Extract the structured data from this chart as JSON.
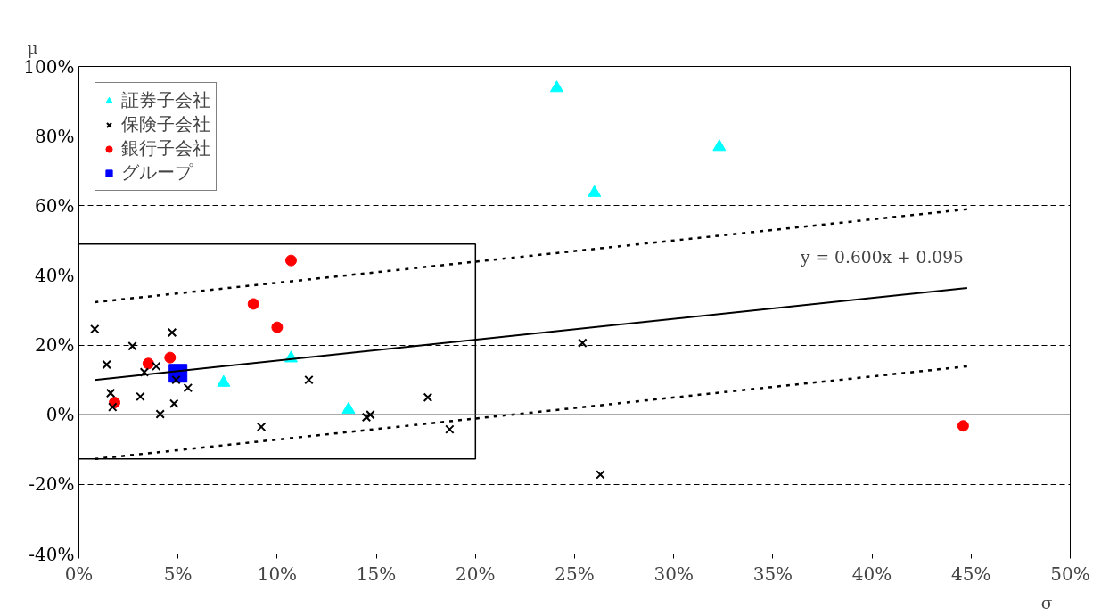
{
  "chart_data": {
    "type": "scatter",
    "xlabel": "σ",
    "ylabel": "μ",
    "xlim": [
      0,
      50
    ],
    "ylim": [
      -40,
      100
    ],
    "xticks": [
      {
        "value": 0,
        "label": "0%"
      },
      {
        "value": 5,
        "label": "5%"
      },
      {
        "value": 10,
        "label": "10%"
      },
      {
        "value": 15,
        "label": "15%"
      },
      {
        "value": 20,
        "label": "20%"
      },
      {
        "value": 25,
        "label": "25%"
      },
      {
        "value": 30,
        "label": "30%"
      },
      {
        "value": 35,
        "label": "35%"
      },
      {
        "value": 40,
        "label": "40%"
      },
      {
        "value": 45,
        "label": "45%"
      },
      {
        "value": 50,
        "label": "50%"
      }
    ],
    "yticks": [
      {
        "value": -40,
        "label": "-40%"
      },
      {
        "value": -20,
        "label": "-20%"
      },
      {
        "value": 0,
        "label": "0%"
      },
      {
        "value": 20,
        "label": "20%"
      },
      {
        "value": 40,
        "label": "40%"
      },
      {
        "value": 60,
        "label": "60%"
      },
      {
        "value": 80,
        "label": "80%"
      },
      {
        "value": 100,
        "label": "100%"
      }
    ],
    "grid": "y",
    "legend": "top left",
    "ref_lines": [
      {
        "axis": "y",
        "value": 0,
        "color": "#555555",
        "line_style": "solid"
      }
    ],
    "annotations": [
      "y = 0.600x + 0.095"
    ],
    "series": [
      {
        "name": "証券子会社",
        "color": "#00ffff",
        "marker": "triangle",
        "x": [
          24.1,
          26.0,
          32.3,
          7.3,
          10.7,
          13.6
        ],
        "values": [
          93.8,
          63.7,
          76.9,
          9.2,
          16.2,
          1.5
        ]
      },
      {
        "name": "保険子会社",
        "color": "#000000",
        "marker": "cross",
        "x": [
          0.8,
          1.4,
          1.6,
          1.7,
          2.7,
          3.1,
          3.3,
          3.9,
          4.1,
          4.7,
          4.8,
          4.9,
          5.5,
          11.6,
          9.2,
          14.5,
          14.7,
          17.6,
          18.7,
          25.4,
          26.3
        ],
        "values": [
          24.6,
          14.4,
          6.2,
          2.2,
          19.7,
          5.2,
          12.2,
          13.9,
          0.2,
          23.6,
          3.2,
          10.0,
          7.7,
          10.0,
          -3.5,
          -0.7,
          0.0,
          5.0,
          -4.2,
          20.6,
          -17.2
        ]
      },
      {
        "name": "銀行子会社",
        "color": "#ff0000",
        "marker": "circle",
        "x": [
          1.8,
          3.5,
          4.6,
          8.8,
          10.0,
          10.7,
          44.6
        ],
        "values": [
          3.5,
          14.7,
          16.4,
          31.8,
          25.1,
          44.3,
          -3.2
        ]
      },
      {
        "name": "グループ",
        "color": "#0000ff",
        "marker": "square",
        "x": [
          5.0
        ],
        "values": [
          11.9
        ]
      },
      {
        "type": "line",
        "color": "#000000",
        "line_style": "solid",
        "x": [
          0.8,
          44.8
        ],
        "values": [
          10.0,
          36.4
        ]
      },
      {
        "type": "line",
        "color": "#000000",
        "line_style": "dotted",
        "x": [
          0.8,
          44.8
        ],
        "values": [
          32.3,
          59.0
        ]
      },
      {
        "type": "line",
        "color": "#000000",
        "line_style": "dotted",
        "x": [
          0.8,
          44.8
        ],
        "values": [
          -12.7,
          13.9
        ]
      }
    ]
  }
}
